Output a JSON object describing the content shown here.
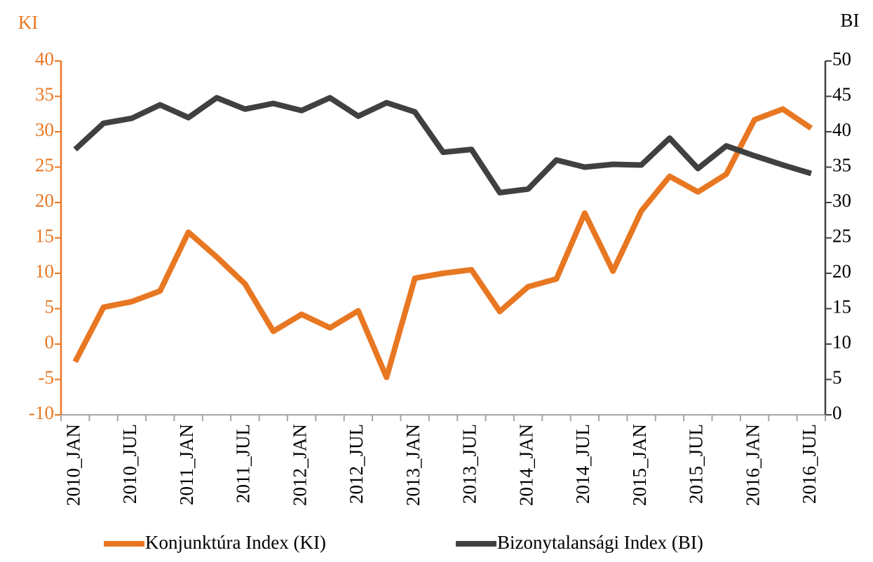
{
  "chart_data": {
    "type": "line",
    "y_label": "KI",
    "y2_label": "BI",
    "categories": [
      "2010_JAN",
      null,
      "2010_JUL",
      null,
      "2011_JAN",
      null,
      "2011_JUL",
      null,
      "2012_JAN",
      null,
      "2012_JUL",
      null,
      "2013_JAN",
      null,
      "2013_JUL",
      null,
      "2014_JAN",
      null,
      "2014_JUL",
      null,
      "2015_JAN",
      null,
      "2015_JUL",
      null,
      "2016_JAN",
      null,
      "2016_JUL"
    ],
    "series": [
      {
        "name": "Konjunktúra Index (KI)",
        "color": "#e87722",
        "axis": "y",
        "values": [
          -2.5,
          5.2,
          6,
          7.5,
          15.8,
          12.3,
          8.5,
          1.8,
          4.2,
          2.3,
          4.7,
          -4.7,
          9.3,
          10,
          10.5,
          4.6,
          8.1,
          9.2,
          18.5,
          10.3,
          18.8,
          23.7,
          21.5,
          24,
          31.7,
          33.2,
          30.5
        ]
      },
      {
        "name": "Bizonytalansági Index (BI)",
        "color": "#404040",
        "axis": "y2",
        "values": [
          37.5,
          41.2,
          41.9,
          43.8,
          42,
          44.8,
          43.2,
          44,
          43,
          44.8,
          42.2,
          44.1,
          42.8,
          37.1,
          37.5,
          31.4,
          31.9,
          36,
          35,
          35.4,
          35.3,
          39.1,
          34.8,
          38,
          36.6,
          35.3,
          34.1
        ]
      }
    ],
    "ylim": [
      -10,
      40
    ],
    "yticks": [
      -10,
      -5,
      0,
      5,
      10,
      15,
      20,
      25,
      30,
      35,
      40
    ],
    "y2lim": [
      0,
      50
    ],
    "y2ticks": [
      0,
      5,
      10,
      15,
      20,
      25,
      30,
      35,
      40,
      45,
      50
    ],
    "legend": "bottom"
  }
}
